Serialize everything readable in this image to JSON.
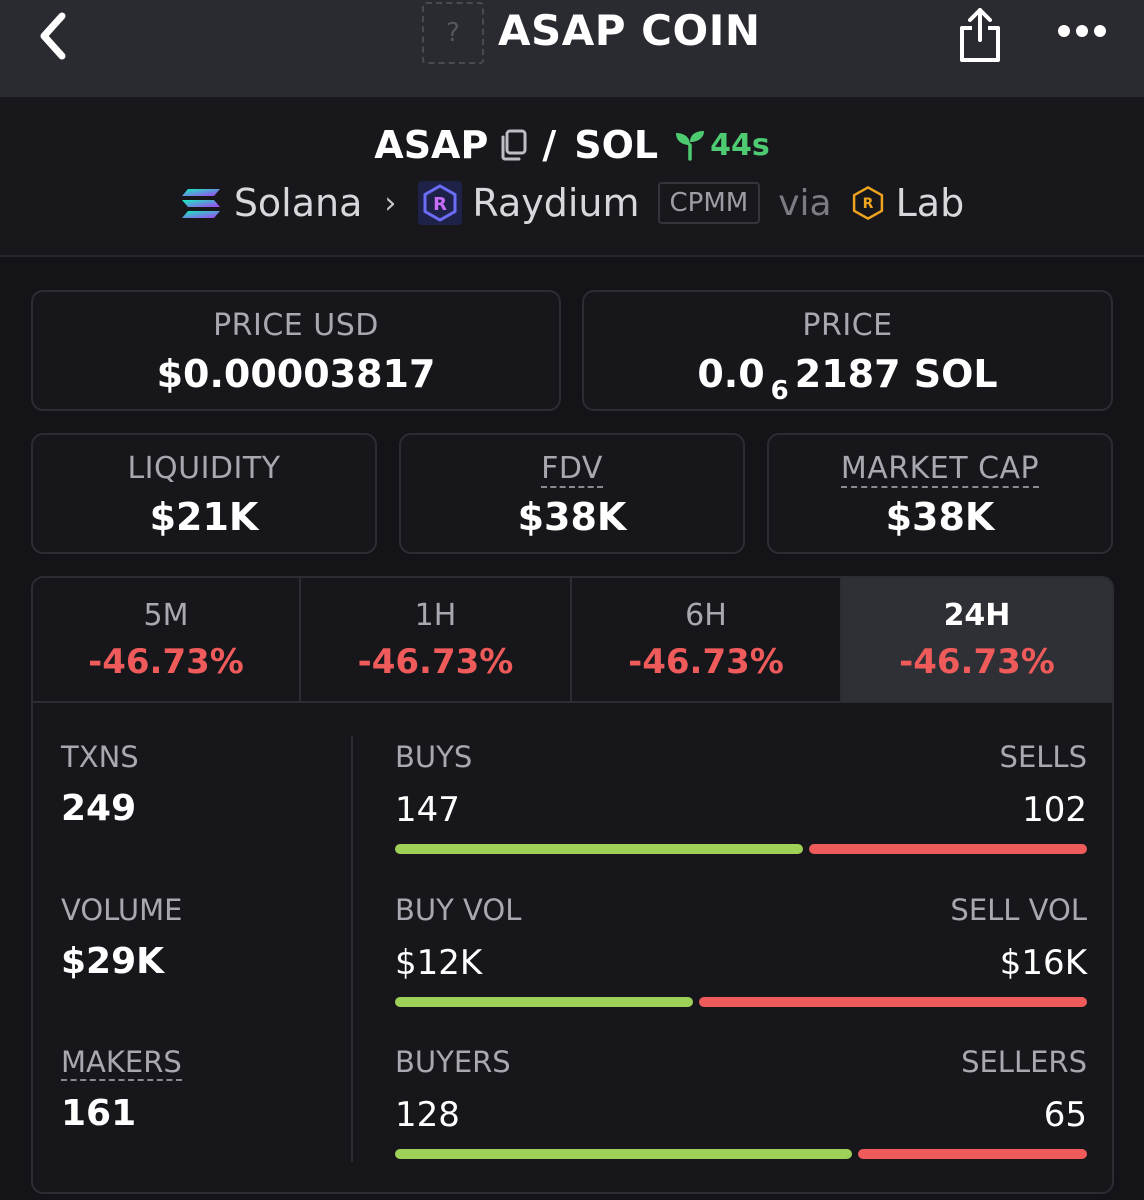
{
  "header": {
    "title": "ASAP COIN",
    "thumb_placeholder": "?"
  },
  "pair": {
    "base": "ASAP",
    "separator": "/",
    "quote": "SOL",
    "age": "44s",
    "chain": "Solana",
    "dex": "Raydium",
    "dex_badge": "CPMM",
    "via": "via",
    "launchpad": "Lab"
  },
  "stats": {
    "price_usd": {
      "label": "PRICE USD",
      "value": "$0.00003817"
    },
    "price": {
      "label": "PRICE",
      "prefix": "0.0",
      "zeros": "6",
      "suffix": "2187 SOL"
    },
    "liquidity": {
      "label": "LIQUIDITY",
      "value": "$21K"
    },
    "fdv": {
      "label": "FDV",
      "value": "$38K"
    },
    "market_cap": {
      "label": "MARKET CAP",
      "value": "$38K"
    }
  },
  "periods": [
    {
      "label": "5M",
      "change": "-46.73%"
    },
    {
      "label": "1H",
      "change": "-46.73%"
    },
    {
      "label": "6H",
      "change": "-46.73%"
    },
    {
      "label": "24H",
      "change": "-46.73%",
      "active": true
    }
  ],
  "metrics": {
    "txns": {
      "label": "TXNS",
      "value": "249"
    },
    "volume": {
      "label": "VOLUME",
      "value": "$29K"
    },
    "makers": {
      "label": "MAKERS",
      "value": "161"
    }
  },
  "breakdown": {
    "buys": {
      "left_label": "BUYS",
      "right_label": "SELLS",
      "left_value": "147",
      "right_value": "102",
      "buy_ratio": 0.59
    },
    "volume": {
      "left_label": "BUY VOL",
      "right_label": "SELL VOL",
      "left_value": "$12K",
      "right_value": "$16K",
      "buy_ratio": 0.43
    },
    "makers": {
      "left_label": "BUYERS",
      "right_label": "SELLERS",
      "left_value": "128",
      "right_value": "65",
      "buy_ratio": 0.66
    }
  },
  "colors": {
    "positive": "#9fd057",
    "negative": "#ef5b5b",
    "age_green": "#4ecb71",
    "background": "#131318"
  },
  "icons": [
    "back-icon",
    "share-icon",
    "more-icon",
    "copy-icon",
    "sprout-icon",
    "solana-icon",
    "chevron-right-icon",
    "raydium-icon",
    "launchlab-icon"
  ]
}
